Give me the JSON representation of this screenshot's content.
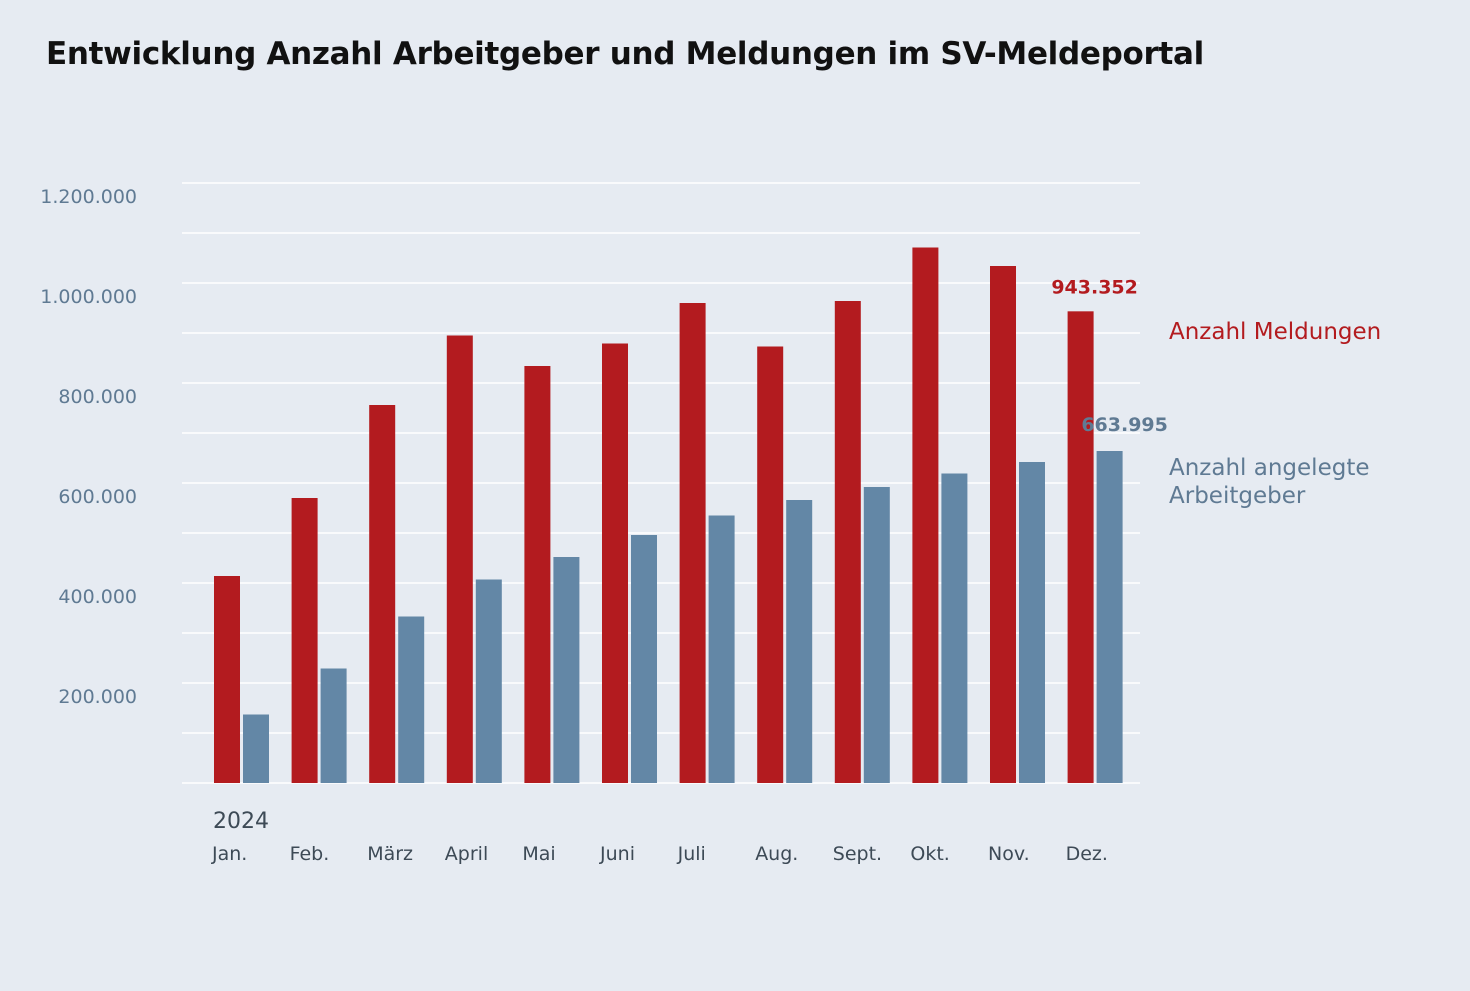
{
  "title": "Entwicklung Anzahl Arbeitgeber und Meldungen im SV-Meldeportal",
  "chart_data": {
    "type": "bar",
    "title": "Entwicklung Anzahl Arbeitgeber und Meldungen im SV-Meldeportal",
    "year_label": "2024",
    "categories": [
      "Jan.",
      "Feb.",
      "März",
      "April",
      "Mai",
      "Juni",
      "Juli",
      "Aug.",
      "Sept.",
      "Okt.",
      "Nov.",
      "Dez."
    ],
    "series": [
      {
        "name": "Anzahl Meldungen",
        "color": "#b31b1f",
        "values": [
          414000,
          570000,
          756000,
          895000,
          834000,
          879000,
          960000,
          873000,
          964000,
          1071000,
          1034000,
          943352
        ],
        "end_label": "943.352"
      },
      {
        "name": "Anzahl angelegte Arbeitgeber",
        "legend_lines": [
          "Anzahl angelegte",
          "Arbeitgeber"
        ],
        "color": "#6387a6",
        "values": [
          137000,
          229000,
          333000,
          407000,
          452000,
          496000,
          535000,
          566000,
          592000,
          619000,
          642000,
          663995
        ],
        "end_label": "663.995"
      }
    ],
    "ylim": [
      0,
      1200000
    ],
    "yticks": [
      200000,
      400000,
      600000,
      800000,
      1000000,
      1200000
    ],
    "ytick_labels": [
      "200.000",
      "400.000",
      "600.000",
      "800.000",
      "1.000.000",
      "1.200.000"
    ],
    "grid": true,
    "xlabel": "",
    "ylabel": ""
  }
}
